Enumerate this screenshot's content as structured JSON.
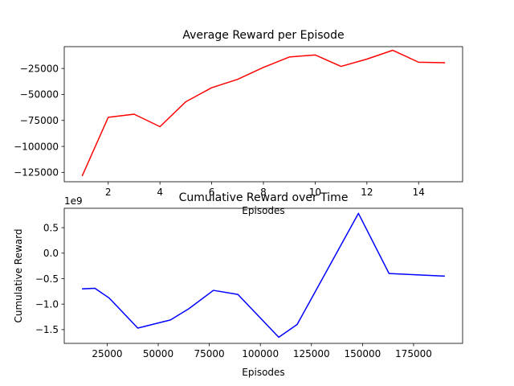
{
  "chart_data": [
    {
      "type": "line",
      "title": "Average Reward per Episode",
      "xlabel": "Episodes",
      "ylabel": "",
      "xlim": [
        0.3,
        15.7
      ],
      "ylim": [
        -134000,
        -4000
      ],
      "x_ticks": [
        2,
        4,
        6,
        8,
        10,
        12,
        14
      ],
      "y_ticks": [
        -125000,
        -100000,
        -75000,
        -50000,
        -25000
      ],
      "y_tick_labels": [
        "−125000",
        "−100000",
        "−75000",
        "−50000",
        "−25000"
      ],
      "grid": false,
      "series": [
        {
          "color": "#ff0000",
          "x": [
            1,
            2,
            3,
            4,
            5,
            6,
            7,
            8,
            9,
            10,
            11,
            12,
            13,
            14,
            15
          ],
          "y": [
            -128000,
            -72000,
            -69000,
            -81000,
            -57000,
            -43500,
            -35500,
            -24000,
            -14000,
            -12000,
            -23000,
            -16000,
            -7500,
            -19000,
            -19500
          ]
        }
      ]
    },
    {
      "type": "line",
      "title": "Cumulative Reward over Time",
      "xlabel": "Episodes",
      "ylabel": "Cumulative Reward",
      "y_offset_label": "1e9",
      "xlim": [
        4000,
        199000
      ],
      "ylim": [
        -1.77,
        0.88
      ],
      "x_ticks": [
        25000,
        50000,
        75000,
        100000,
        125000,
        150000,
        175000
      ],
      "x_tick_labels": [
        "25000",
        "50000",
        "75000",
        "100000",
        "125000",
        "150000",
        "175000"
      ],
      "y_ticks": [
        -1.5,
        -1.0,
        -0.5,
        0.0,
        0.5
      ],
      "y_tick_labels": [
        "−1.5",
        "−1.0",
        "−0.5",
        "0.0",
        "0.5"
      ],
      "grid": false,
      "series": [
        {
          "color": "#0000ff",
          "x": [
            13000,
            19000,
            26000,
            40000,
            52000,
            56000,
            65000,
            77000,
            89000,
            109000,
            118000,
            148000,
            163000,
            190000
          ],
          "y": [
            -0.7,
            -0.69,
            -0.88,
            -1.47,
            -1.35,
            -1.31,
            -1.09,
            -0.73,
            -0.81,
            -1.65,
            -1.4,
            0.78,
            -0.4,
            -0.45
          ]
        }
      ]
    }
  ]
}
